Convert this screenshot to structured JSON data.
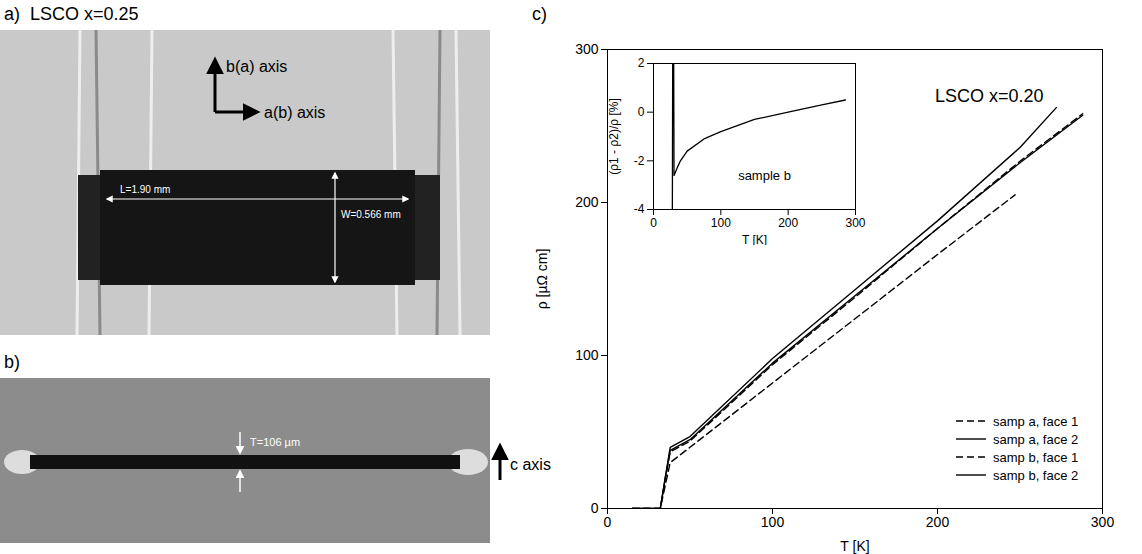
{
  "photos": [
    {
      "letter": "a)",
      "title": "LSCO x=0.25",
      "axes": [
        "b(a) axis",
        "a(b) axis"
      ],
      "dimensions": [
        "L=1.90 mm",
        "W=0.566 mm"
      ]
    },
    {
      "letter": "b)",
      "axes": [
        "c axis"
      ],
      "dimensions": [
        "T=106 µm"
      ]
    }
  ],
  "chart_data": [
    {
      "type": "line",
      "letter": "c)",
      "title": "LSCO x=0.20",
      "x_label": "T [K]",
      "y_label": "ρ [µΩ cm]",
      "xlim": [
        0,
        300
      ],
      "ylim": [
        0,
        300
      ],
      "xticks": [
        0,
        100,
        200,
        300
      ],
      "yticks": [
        0,
        100,
        200,
        300
      ],
      "legend": "lower right",
      "series": [
        {
          "name": "samp a, face 1",
          "color": "#000000",
          "line_style": "dashed",
          "x": [
            15,
            32,
            35,
            38,
            50,
            100,
            150,
            200,
            247
          ],
          "values": [
            0,
            0,
            15,
            30,
            40,
            82,
            124,
            166,
            205
          ]
        },
        {
          "name": "samp a, face 2",
          "color": "#000000",
          "line_style": "solid",
          "x": [
            15,
            32,
            35,
            38,
            50,
            100,
            150,
            200,
            250,
            272
          ],
          "values": [
            0,
            0,
            20,
            40,
            47,
            98,
            143,
            188,
            236,
            262
          ]
        },
        {
          "name": "samp b, face 1",
          "color": "#000000",
          "line_style": "dashed",
          "x": [
            15,
            32,
            35,
            38,
            50,
            100,
            150,
            200,
            250,
            288
          ],
          "values": [
            0,
            0,
            19,
            37,
            44,
            94,
            138,
            183,
            227,
            258
          ]
        },
        {
          "name": "samp b, face 2",
          "color": "#000000",
          "line_style": "solid",
          "x": [
            15,
            32,
            35,
            38,
            50,
            100,
            150,
            200,
            250,
            288
          ],
          "values": [
            0,
            0,
            20,
            38,
            45,
            95,
            139,
            183,
            226,
            257
          ]
        }
      ]
    },
    {
      "type": "line",
      "annotations": [
        "sample b"
      ],
      "x_label": "T [K]",
      "y_label": "(ρ1 - ρ2)/ρ [%]",
      "xlim": [
        0,
        300
      ],
      "ylim": [
        -4,
        2
      ],
      "xticks": [
        0,
        100,
        200,
        300
      ],
      "yticks": [
        -4,
        -2,
        0,
        2
      ],
      "series": [
        {
          "color": "#000000",
          "line_style": "solid",
          "x": [
            28,
            28.5,
            30,
            30.5,
            35,
            40,
            50,
            75,
            100,
            150,
            200,
            250,
            285
          ],
          "values": [
            -4,
            2,
            2,
            -2.6,
            -2.3,
            -2.0,
            -1.6,
            -1.1,
            -0.8,
            -0.3,
            0,
            0.3,
            0.5
          ]
        }
      ]
    }
  ]
}
